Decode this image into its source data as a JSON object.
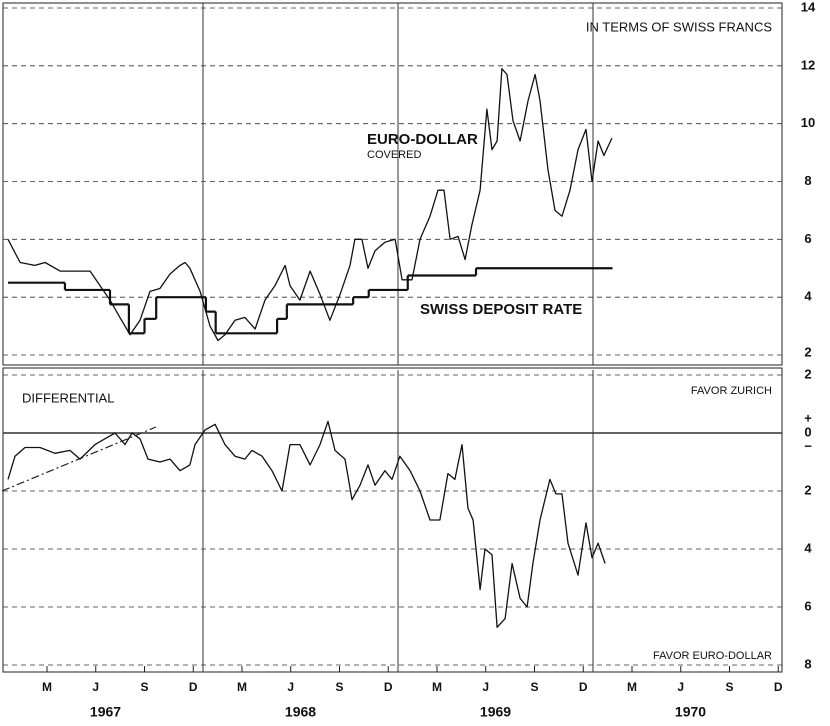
{
  "chart_data": [
    {
      "type": "line",
      "annotations": {
        "title": "IN TERMS OF SWISS FRANCS",
        "covered": "COVERED"
      },
      "xlim": [
        1967,
        1971
      ],
      "xgrid": [
        1968,
        1969,
        1970
      ],
      "ylim": [
        2,
        14
      ],
      "yticks": [
        2,
        4,
        6,
        8,
        10,
        12,
        14
      ],
      "grid": true,
      "series": [
        {
          "name": "EURO-DOLLAR",
          "color": "#111111",
          "step": false,
          "x": [
            1967.0,
            1967.062,
            1967.138,
            1967.19,
            1967.267,
            1967.344,
            1967.421,
            1967.472,
            1967.523,
            1967.574,
            1967.626,
            1967.677,
            1967.728,
            1967.779,
            1967.831,
            1967.882,
            1967.908,
            1967.933,
            1967.985,
            1968.036,
            1968.077,
            1968.113,
            1968.164,
            1968.215,
            1968.267,
            1968.318,
            1968.369,
            1968.421,
            1968.446,
            1968.497,
            1968.549,
            1968.6,
            1968.651,
            1968.703,
            1968.754,
            1968.779,
            1968.815,
            1968.846,
            1968.882,
            1968.933,
            1968.985,
            1969.021,
            1969.072,
            1969.113,
            1969.164,
            1969.205,
            1969.236,
            1969.267,
            1969.308,
            1969.344,
            1969.379,
            1969.421,
            1969.456,
            1969.482,
            1969.508,
            1969.533,
            1969.559,
            1969.59,
            1969.626,
            1969.667,
            1969.703,
            1969.728,
            1969.769,
            1969.805,
            1969.841,
            1969.882,
            1969.923,
            1969.964,
            1969.995,
            1970.026,
            1970.056,
            1970.097
          ],
          "values": [
            6.0,
            5.2,
            5.1,
            5.2,
            4.9,
            4.9,
            4.9,
            4.4,
            3.9,
            3.3,
            2.7,
            3.2,
            4.2,
            4.3,
            4.8,
            5.1,
            5.2,
            5.0,
            4.2,
            3.0,
            2.5,
            2.7,
            3.2,
            3.3,
            2.9,
            3.9,
            4.4,
            5.1,
            4.4,
            3.9,
            4.9,
            4.1,
            3.2,
            4.1,
            5.1,
            6.0,
            6.0,
            5.0,
            5.6,
            5.9,
            6.0,
            4.6,
            4.6,
            6.0,
            6.8,
            7.7,
            7.7,
            6.0,
            6.1,
            5.3,
            6.5,
            7.7,
            10.5,
            9.1,
            9.4,
            11.9,
            11.7,
            10.1,
            9.4,
            10.8,
            11.7,
            10.8,
            8.4,
            7.0,
            6.8,
            7.7,
            9.1,
            9.8,
            8.0,
            9.4,
            8.9,
            9.5
          ]
        },
        {
          "name": "SWISS DEPOSIT RATE",
          "color": "#111111",
          "step": true,
          "x": [
            1967.0,
            1967.292,
            1967.523,
            1967.62,
            1967.7,
            1967.76,
            1968.015,
            1968.065,
            1968.38,
            1968.43,
            1968.77,
            1968.85,
            1969.05,
            1969.4,
            1970.1
          ],
          "values": [
            4.5,
            4.25,
            3.75,
            2.75,
            3.25,
            4.0,
            3.5,
            2.75,
            3.25,
            3.75,
            4.0,
            4.25,
            4.75,
            5.0,
            5.0
          ]
        }
      ]
    },
    {
      "type": "line",
      "annotations": {
        "favor_top": "FAVOR ZURICH",
        "favor_bottom": "FAVOR EURO-DOLLAR"
      },
      "zero_signs": [
        "+",
        "−"
      ],
      "xlim": [
        1967,
        1971
      ],
      "xgrid": [
        1968,
        1969,
        1970
      ],
      "xticks": [
        {
          "value": 1967.2,
          "label": "M"
        },
        {
          "value": 1967.45,
          "label": "J"
        },
        {
          "value": 1967.7,
          "label": "S"
        },
        {
          "value": 1967.95,
          "label": "D"
        },
        {
          "value": 1968.2,
          "label": "M"
        },
        {
          "value": 1968.45,
          "label": "J"
        },
        {
          "value": 1968.7,
          "label": "S"
        },
        {
          "value": 1968.95,
          "label": "D"
        },
        {
          "value": 1969.2,
          "label": "M"
        },
        {
          "value": 1969.45,
          "label": "J"
        },
        {
          "value": 1969.7,
          "label": "S"
        },
        {
          "value": 1969.95,
          "label": "D"
        },
        {
          "value": 1970.2,
          "label": "M"
        },
        {
          "value": 1970.45,
          "label": "J"
        },
        {
          "value": 1970.7,
          "label": "S"
        },
        {
          "value": 1970.95,
          "label": "D"
        }
      ],
      "year_labels": [
        {
          "value": 1967.5,
          "label": "1967"
        },
        {
          "value": 1968.5,
          "label": "1968"
        },
        {
          "value": 1969.5,
          "label": "1969"
        },
        {
          "value": 1970.5,
          "label": "1970"
        }
      ],
      "ylim": [
        -8,
        2
      ],
      "yticks": [
        {
          "value": 2,
          "label": "2"
        },
        {
          "value": 0,
          "label": "0"
        },
        {
          "value": -2,
          "label": "2"
        },
        {
          "value": -4,
          "label": "4"
        },
        {
          "value": -6,
          "label": "6"
        },
        {
          "value": -8,
          "label": "8"
        }
      ],
      "grid": true,
      "series": [
        {
          "name": "DIFFERENTIAL",
          "color": "#111111",
          "step": false,
          "x": [
            1967.0,
            1967.036,
            1967.087,
            1967.164,
            1967.241,
            1967.318,
            1967.369,
            1967.446,
            1967.497,
            1967.549,
            1967.6,
            1967.636,
            1967.677,
            1967.718,
            1967.779,
            1967.831,
            1967.882,
            1967.933,
            1967.959,
            1968.01,
            1968.062,
            1968.113,
            1968.164,
            1968.215,
            1968.251,
            1968.303,
            1968.354,
            1968.405,
            1968.446,
            1968.497,
            1968.549,
            1968.6,
            1968.641,
            1968.677,
            1968.728,
            1968.764,
            1968.805,
            1968.846,
            1968.882,
            1968.933,
            1968.969,
            1969.01,
            1969.062,
            1969.113,
            1969.164,
            1969.215,
            1969.256,
            1969.292,
            1969.328,
            1969.359,
            1969.385,
            1969.421,
            1969.446,
            1969.482,
            1969.508,
            1969.549,
            1969.585,
            1969.626,
            1969.662,
            1969.692,
            1969.728,
            1969.779,
            1969.81,
            1969.841,
            1969.872,
            1969.923,
            1969.964,
            1969.995,
            1970.026,
            1970.062
          ],
          "values": [
            -1.6,
            -0.8,
            -0.5,
            -0.5,
            -0.7,
            -0.6,
            -0.9,
            -0.4,
            -0.2,
            0.0,
            -0.4,
            0.0,
            -0.2,
            -0.9,
            -1.0,
            -0.9,
            -1.3,
            -1.1,
            -0.4,
            0.1,
            0.3,
            -0.4,
            -0.8,
            -0.9,
            -0.6,
            -0.8,
            -1.3,
            -2.0,
            -0.4,
            -0.4,
            -1.1,
            -0.4,
            0.4,
            -0.6,
            -0.9,
            -2.3,
            -1.8,
            -1.1,
            -1.8,
            -1.3,
            -1.6,
            -0.8,
            -1.3,
            -2.0,
            -3.0,
            -3.0,
            -1.4,
            -1.6,
            -0.4,
            -2.6,
            -3.0,
            -5.4,
            -4.0,
            -4.2,
            -6.7,
            -6.4,
            -4.5,
            -5.7,
            -6.0,
            -4.5,
            -3.0,
            -1.6,
            -2.1,
            -2.1,
            -3.8,
            -4.9,
            -3.1,
            -4.3,
            -3.8,
            -4.5
          ]
        }
      ]
    }
  ]
}
